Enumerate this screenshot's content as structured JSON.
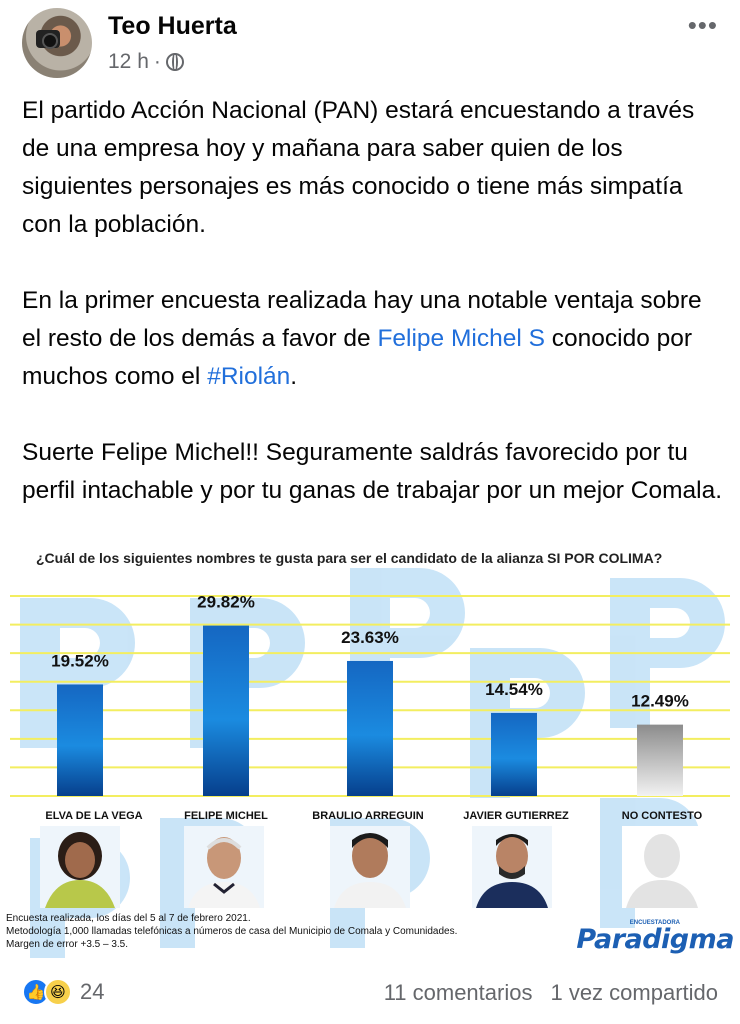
{
  "post": {
    "author": "Teo Huerta",
    "time": "12 h",
    "separator": "·",
    "paragraph1": "El partido Acción Nacional (PAN) estará encuestando a través de una empresa hoy y mañana para saber quien de los  siguientes personajes  es más conocido o tiene más simpatía con la población.",
    "paragraph2_before": "En la primer encuesta realizada hay una notable ventaja sobre el resto de los demás a favor de ",
    "paragraph2_link": "Felipe Michel S",
    "paragraph2_middle": " conocido por muchos como el ",
    "paragraph2_hashtag": "#Riolán",
    "paragraph2_after": ".",
    "paragraph3": "Suerte Felipe Michel!! Seguramente saldrás favorecido por tu perfil intachable y por tu ganas de trabajar por un mejor Comala."
  },
  "colors": {
    "link": "#216fdb",
    "bar_blue": "#1a73c8",
    "bar_gray": "#9a9a9a",
    "grid": "#f3ee60",
    "watermark": "#b8dcf5"
  },
  "chart_data": {
    "type": "bar",
    "title": "¿Cuál de los siguientes nombres te gusta para ser el candidato de la alianza SI POR COLIMA?",
    "categories": [
      "ELVA DE LA VEGA",
      "FELIPE MICHEL",
      "BRAULIO ARREGUIN",
      "JAVIER GUTIERREZ",
      "NO CONTESTO"
    ],
    "values": [
      19.52,
      29.82,
      23.63,
      14.54,
      12.49
    ],
    "value_labels": [
      "19.52%",
      "29.82%",
      "23.63%",
      "14.54%",
      "12.49%"
    ],
    "ylim": [
      0,
      35
    ],
    "grid": true
  },
  "poll_footer": {
    "line1": "Encuesta realizada,  los días del 5 al 7 de febrero 2021.",
    "line2": "Metodología 1,000 llamadas telefónicas a números de casa del Municipio de Comala y Comunidades.",
    "line3": "Margen de error +3.5 – 3.5.",
    "logo_small": "ENCUESTADORA",
    "logo": "Paradigma"
  },
  "footer": {
    "reaction_count": "24",
    "comments": "11 comentarios",
    "shares": "1 vez compartido"
  }
}
